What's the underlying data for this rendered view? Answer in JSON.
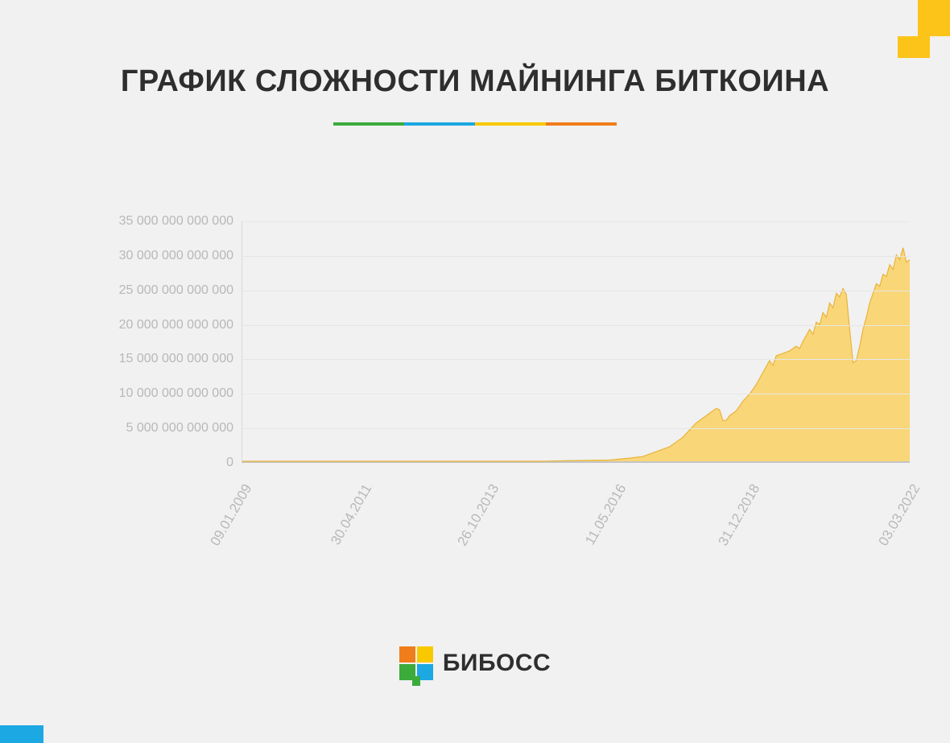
{
  "title": "ГРАФИК СЛОЖНОСТИ МАЙНИНГА БИТКОИНА",
  "divider_colors": [
    "#3bab3b",
    "#1ca8e3",
    "#f9c900",
    "#ef7e1a"
  ],
  "corner_top_right_color": "#fcc419",
  "corner_bottom_left_color": "#1ca8e3",
  "background_color": "#f1f1f1",
  "chart": {
    "type": "area",
    "ylim": [
      0,
      35000000000000
    ],
    "ytick_values": [
      0,
      5000000000000,
      10000000000000,
      15000000000000,
      20000000000000,
      25000000000000,
      30000000000000,
      35000000000000
    ],
    "ytick_labels": [
      "0",
      "5 000 000 000 000",
      "10 000 000 000 000",
      "15 000 000 000 000",
      "20 000 000 000 000",
      "25 000 000 000 000",
      "30 000 000 000 000",
      "35 000 000 000 000"
    ],
    "xtick_positions": [
      0.0,
      0.18,
      0.37,
      0.56,
      0.76,
      1.0
    ],
    "xtick_labels": [
      "09.01.2009",
      "30.04.2011",
      "26.10.2013",
      "11.05.2016",
      "31.12.2018",
      "03.03.2022"
    ],
    "xtick_rotation_deg": -60,
    "grid_color": "#e6e6e6",
    "axis_color": "#c4c4c4",
    "label_color": "#b8b8b8",
    "label_fontsize": 16,
    "fill_color": "#f9d36a",
    "fill_opacity": 0.9,
    "stroke_color": "#e9b43a",
    "stroke_width": 1.2,
    "series": [
      [
        0.0,
        0.0
      ],
      [
        0.2,
        0.0
      ],
      [
        0.35,
        0.0
      ],
      [
        0.45,
        0.0
      ],
      [
        0.5,
        0.003
      ],
      [
        0.55,
        0.005
      ],
      [
        0.58,
        0.013
      ],
      [
        0.6,
        0.02
      ],
      [
        0.62,
        0.04
      ],
      [
        0.64,
        0.06
      ],
      [
        0.66,
        0.1
      ],
      [
        0.68,
        0.16
      ],
      [
        0.7,
        0.2
      ],
      [
        0.71,
        0.22
      ],
      [
        0.715,
        0.215
      ],
      [
        0.72,
        0.17
      ],
      [
        0.725,
        0.17
      ],
      [
        0.73,
        0.19
      ],
      [
        0.735,
        0.2
      ],
      [
        0.74,
        0.21
      ],
      [
        0.75,
        0.25
      ],
      [
        0.76,
        0.28
      ],
      [
        0.77,
        0.32
      ],
      [
        0.78,
        0.37
      ],
      [
        0.79,
        0.42
      ],
      [
        0.795,
        0.4
      ],
      [
        0.8,
        0.44
      ],
      [
        0.81,
        0.45
      ],
      [
        0.82,
        0.46
      ],
      [
        0.83,
        0.48
      ],
      [
        0.835,
        0.47
      ],
      [
        0.84,
        0.5
      ],
      [
        0.85,
        0.55
      ],
      [
        0.855,
        0.53
      ],
      [
        0.86,
        0.58
      ],
      [
        0.865,
        0.57
      ],
      [
        0.87,
        0.62
      ],
      [
        0.875,
        0.6
      ],
      [
        0.88,
        0.66
      ],
      [
        0.885,
        0.64
      ],
      [
        0.89,
        0.7
      ],
      [
        0.895,
        0.685
      ],
      [
        0.9,
        0.72
      ],
      [
        0.905,
        0.695
      ],
      [
        0.91,
        0.55
      ],
      [
        0.915,
        0.41
      ],
      [
        0.92,
        0.42
      ],
      [
        0.925,
        0.48
      ],
      [
        0.93,
        0.55
      ],
      [
        0.935,
        0.6
      ],
      [
        0.94,
        0.66
      ],
      [
        0.945,
        0.7
      ],
      [
        0.95,
        0.74
      ],
      [
        0.955,
        0.73
      ],
      [
        0.96,
        0.78
      ],
      [
        0.965,
        0.77
      ],
      [
        0.97,
        0.82
      ],
      [
        0.975,
        0.8
      ],
      [
        0.98,
        0.86
      ],
      [
        0.985,
        0.84
      ],
      [
        0.99,
        0.89
      ],
      [
        0.995,
        0.83
      ],
      [
        1.0,
        0.84
      ]
    ]
  },
  "footer": {
    "brand": "БИБОСС",
    "logo_colors": {
      "top_left": "#ef7e1a",
      "top_right": "#f9c900",
      "bottom_left": "#3bab3b",
      "bottom_right": "#1ca8e3",
      "tail": "#3bab3b"
    }
  }
}
